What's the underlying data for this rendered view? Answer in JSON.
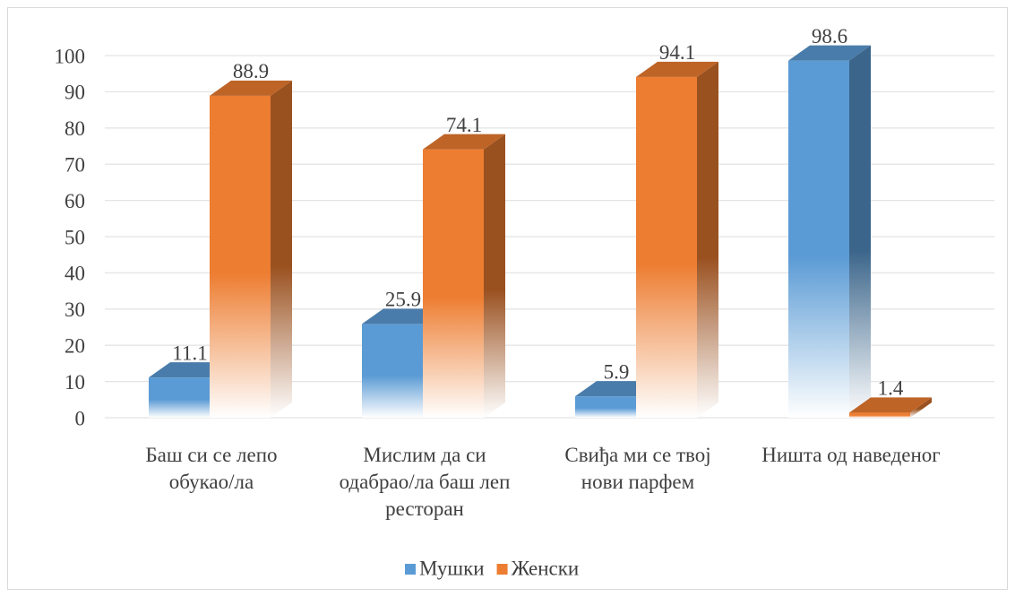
{
  "chart_data": {
    "type": "bar3d",
    "categories": [
      "Баш си се лепо обукао/ла",
      "Мислим да си одабрао/ла баш леп ресторан",
      "Свиђа ми се твој нови парфем",
      "Ништа од наведеног"
    ],
    "series": [
      {
        "name": "Мушки",
        "color": "#5b9bd5",
        "values": [
          11.1,
          25.9,
          5.9,
          98.6
        ]
      },
      {
        "name": "Женски",
        "color": "#ed7d31",
        "values": [
          88.9,
          74.1,
          94.1,
          1.4
        ]
      }
    ],
    "ylim": [
      0,
      100
    ],
    "yticks": [
      0,
      10,
      20,
      30,
      40,
      50,
      60,
      70,
      80,
      90,
      100
    ],
    "grid": true,
    "legend": "bottom"
  }
}
